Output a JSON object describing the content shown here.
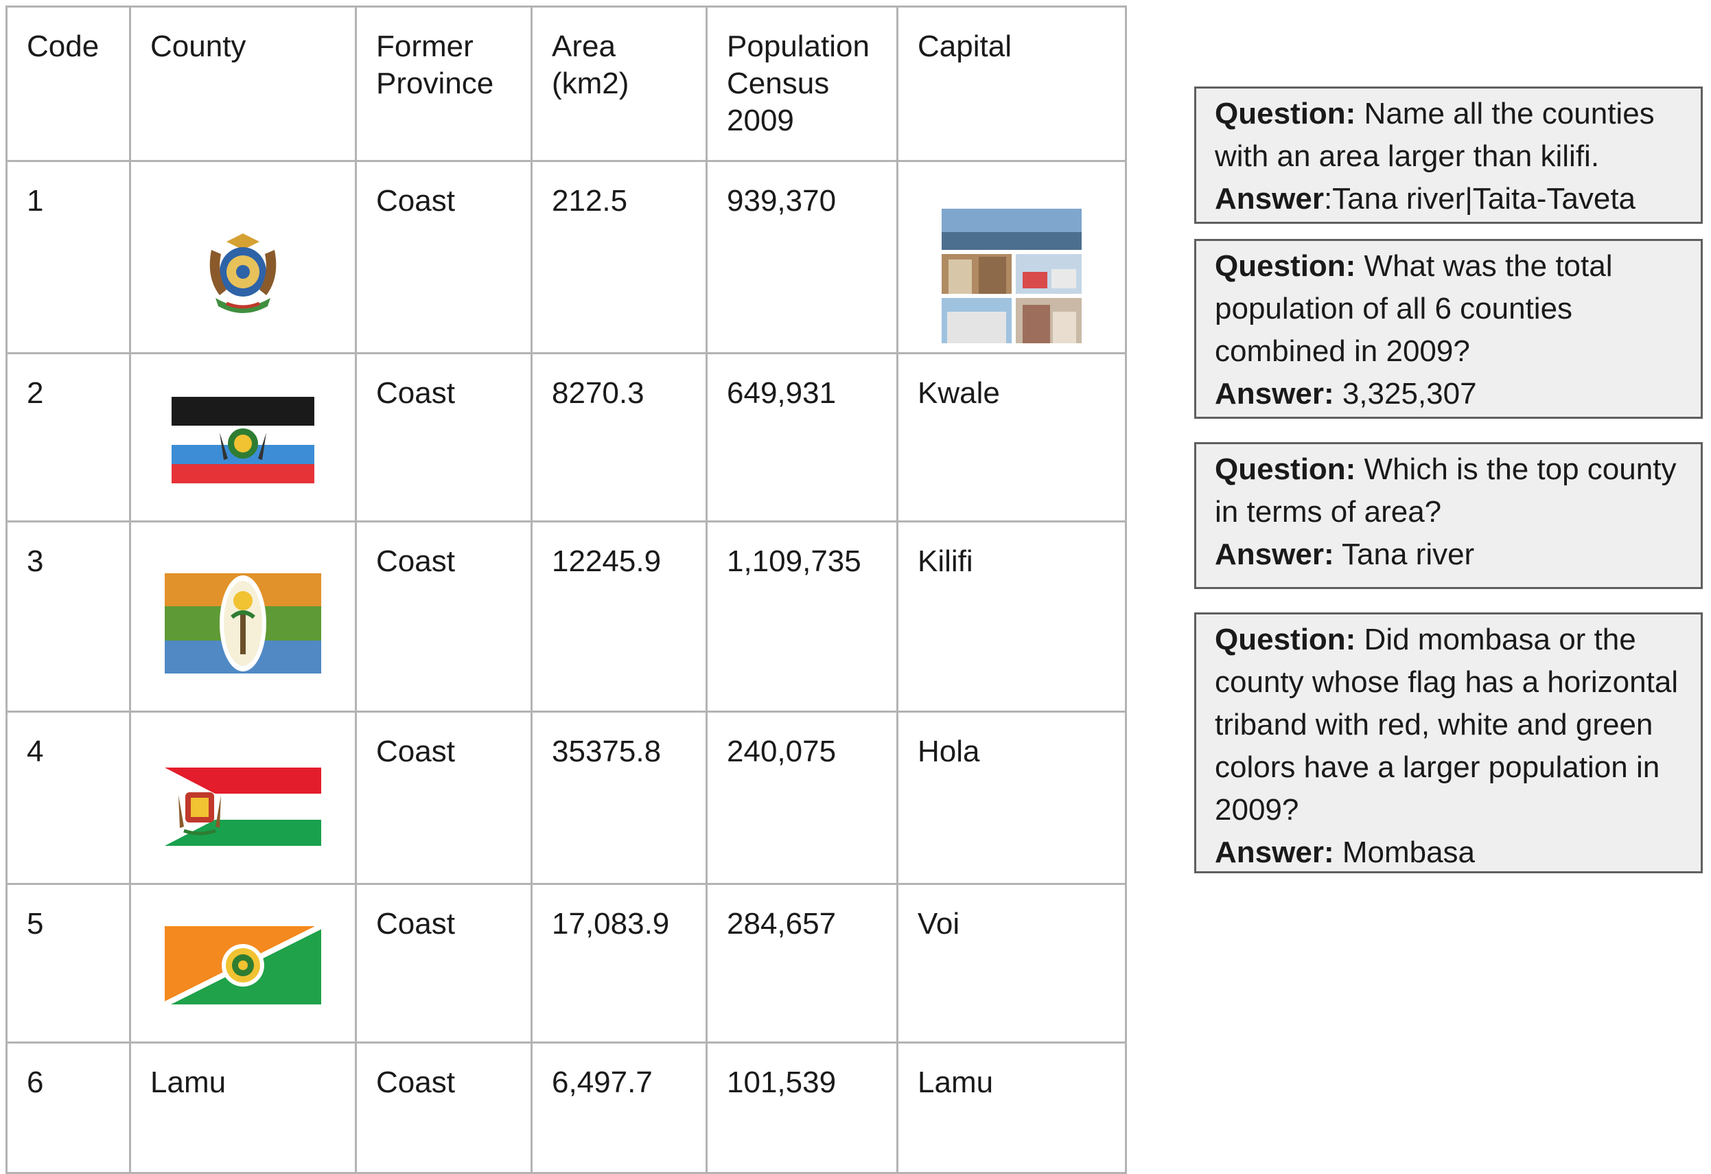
{
  "table": {
    "headers": [
      "Code",
      "County",
      "Former\nProvince",
      "Area\n(km2)",
      "Population\nCensus\n2009",
      "Capital"
    ],
    "rows": [
      {
        "code": "1",
        "county": "",
        "province": "Coast",
        "area": "212.5",
        "population": "939,370",
        "capital": ""
      },
      {
        "code": "2",
        "county": "",
        "province": "Coast",
        "area": "8270.3",
        "population": " 649,931",
        "capital": "Kwale"
      },
      {
        "code": "3",
        "county": "",
        "province": "Coast",
        "area": "12245.9",
        "population": " 1,109,735",
        "capital": "Kilifi"
      },
      {
        "code": "4",
        "county": "",
        "province": "Coast",
        "area": "35375.8",
        "population": "240,075",
        "capital": "Hola"
      },
      {
        "code": "5",
        "county": "",
        "province": "Coast",
        "area": "17,083.9",
        "population": " 284,657",
        "capital": "Voi"
      },
      {
        "code": "6",
        "county": "Lamu",
        "province": "Coast",
        "area": " 6,497.7",
        "population": "101,539",
        "capital": "Lamu"
      }
    ]
  },
  "flags": {
    "row2": [
      "#1a1a1a",
      "#ffffff",
      "#3c8dd6",
      "#e63338"
    ],
    "row3": [
      "#e2922a",
      "#5e9a35",
      "#5089c4"
    ],
    "row4": [
      "#e31d2b",
      "#ffffff",
      "#19a14e"
    ],
    "row5": [
      "#f3891f",
      "#1fa24a"
    ]
  },
  "qa": [
    {
      "q_label": "Question:",
      "question": " Name all the counties with an area larger than kilifi.",
      "a_label": "Answer",
      "answer": ":Tana river|Taita-Taveta"
    },
    {
      "q_label": "Question:",
      "question": " What was the total population of all 6 counties combined in 2009?",
      "a_label": "Answer:",
      "answer": " 3,325,307"
    },
    {
      "q_label": "Question:",
      "question": " Which is the top county in terms of area?",
      "a_label": "Answer:",
      "answer": " Tana river"
    },
    {
      "q_label": "Question:",
      "question": " Did mombasa or the county whose flag has a horizontal triband with red, white and green colors have a larger population in 2009?",
      "a_label": "Answer:",
      "answer": " Mombasa"
    }
  ]
}
